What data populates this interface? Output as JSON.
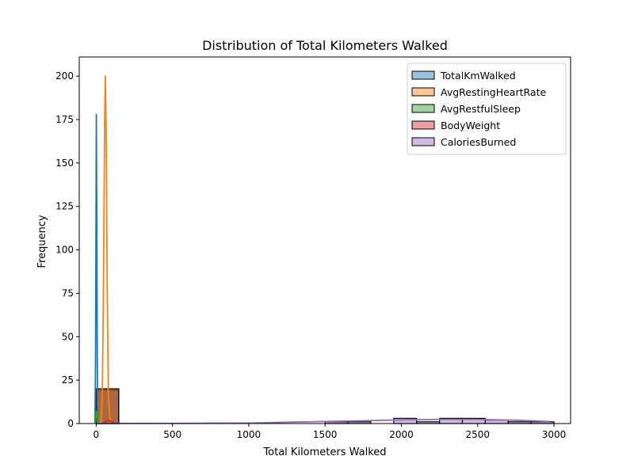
{
  "chart_data": {
    "type": "bar",
    "title": "Distribution of Total Kilometers Walked",
    "xlabel": "Total Kilometers Walked",
    "ylabel": "Frequency",
    "xlim": [
      -111,
      3109
    ],
    "ylim": [
      0,
      211
    ],
    "xticks": [
      0,
      500,
      1000,
      1500,
      2000,
      2500,
      3000
    ],
    "yticks": [
      0,
      25,
      50,
      75,
      100,
      125,
      150,
      175,
      200
    ],
    "grid": false,
    "legend_position": "top-right",
    "series": [
      {
        "name": "TotalKmWalked",
        "color": "#1f77b4",
        "bins": [
          {
            "x0": 0,
            "x1": 148,
            "count": 19
          }
        ],
        "kde": [
          [
            -8,
            0
          ],
          [
            -4,
            40
          ],
          [
            -1,
            120
          ],
          [
            1,
            178
          ],
          [
            4,
            120
          ],
          [
            7,
            40
          ],
          [
            10,
            0
          ],
          [
            20,
            0
          ]
        ]
      },
      {
        "name": "AvgRestingHeartRate",
        "color": "#ff7f0e",
        "bins": [
          {
            "x0": 0,
            "x1": 148,
            "count": 20
          }
        ],
        "kde": [
          [
            30,
            0
          ],
          [
            40,
            15
          ],
          [
            48,
            80
          ],
          [
            55,
            170
          ],
          [
            60,
            200
          ],
          [
            65,
            170
          ],
          [
            72,
            80
          ],
          [
            80,
            15
          ],
          [
            92,
            0
          ]
        ]
      },
      {
        "name": "AvgRestfulSleep",
        "color": "#2ca02c",
        "bins": [
          {
            "x0": 0,
            "x1": 148,
            "count": 20
          }
        ],
        "kde": [
          [
            -6,
            0
          ],
          [
            -3,
            3
          ],
          [
            0,
            7
          ],
          [
            3,
            7
          ],
          [
            6,
            3
          ],
          [
            10,
            0
          ]
        ]
      },
      {
        "name": "BodyWeight",
        "color": "#d62728",
        "bins": [
          {
            "x0": 0,
            "x1": 148,
            "count": 20
          }
        ],
        "kde": [
          [
            40,
            0
          ],
          [
            60,
            1
          ],
          [
            80,
            2
          ],
          [
            100,
            1
          ],
          [
            130,
            0
          ]
        ]
      },
      {
        "name": "CaloriesBurned",
        "color": "#9467bd",
        "bins": [
          {
            "x0": 1500,
            "x1": 1650,
            "count": 1
          },
          {
            "x0": 1650,
            "x1": 1800,
            "count": 1
          },
          {
            "x0": 1800,
            "x1": 1950,
            "count": 0
          },
          {
            "x0": 1950,
            "x1": 2100,
            "count": 3
          },
          {
            "x0": 2100,
            "x1": 2250,
            "count": 1
          },
          {
            "x0": 2250,
            "x1": 2400,
            "count": 3
          },
          {
            "x0": 2400,
            "x1": 2550,
            "count": 3
          },
          {
            "x0": 2550,
            "x1": 2700,
            "count": 2
          },
          {
            "x0": 2700,
            "x1": 2850,
            "count": 1
          },
          {
            "x0": 2850,
            "x1": 3000,
            "count": 1
          }
        ],
        "kde": [
          [
            0,
            0.05
          ],
          [
            500,
            0.1
          ],
          [
            1000,
            0.3
          ],
          [
            1500,
            1.2
          ],
          [
            1750,
            1.6
          ],
          [
            2000,
            2.1
          ],
          [
            2250,
            2.4
          ],
          [
            2500,
            2.4
          ],
          [
            2750,
            1.9
          ],
          [
            2970,
            1.2
          ]
        ]
      }
    ]
  }
}
